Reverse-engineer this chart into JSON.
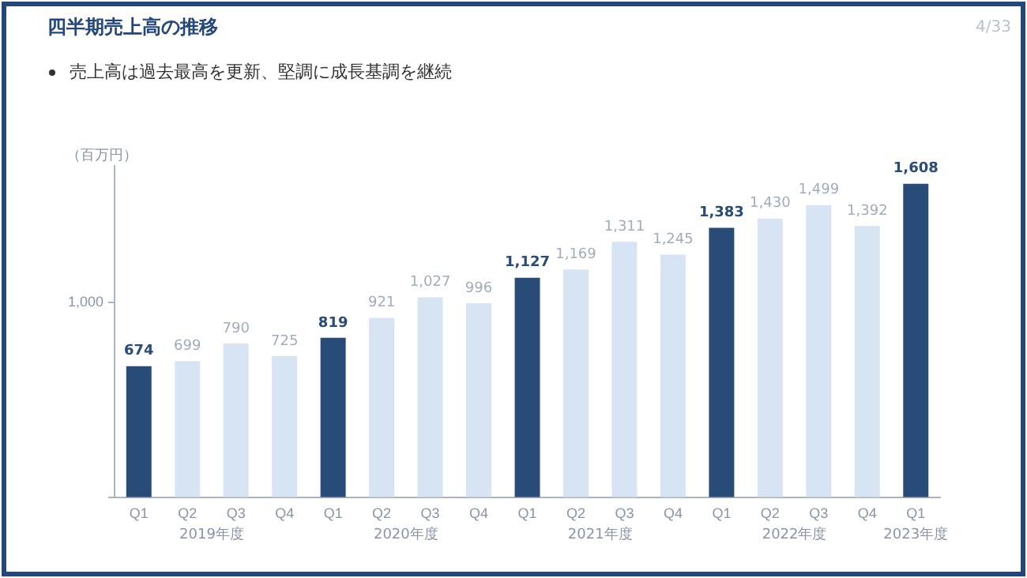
{
  "chart_data": {
    "type": "bar",
    "title": "四半期売上高の推移",
    "subtitle": "売上高は過去最高を更新、堅調に成長基調を継続",
    "ylabel": "（百万円）",
    "categories": [
      "Q1",
      "Q2",
      "Q3",
      "Q4",
      "Q1",
      "Q2",
      "Q3",
      "Q4",
      "Q1",
      "Q2",
      "Q3",
      "Q4",
      "Q1",
      "Q2",
      "Q3",
      "Q4",
      "Q1"
    ],
    "values": [
      674,
      699,
      790,
      725,
      819,
      921,
      1027,
      996,
      1127,
      1169,
      1311,
      1245,
      1383,
      1430,
      1499,
      1392,
      1608
    ],
    "value_labels": [
      "674",
      "699",
      "790",
      "725",
      "819",
      "921",
      "1,027",
      "996",
      "1,127",
      "1,169",
      "1,311",
      "1,245",
      "1,383",
      "1,430",
      "1,499",
      "1,392",
      "1,608"
    ],
    "colors": [
      "#284b78",
      "#d6e4f3",
      "#d6e4f3",
      "#d6e4f3",
      "#284b78",
      "#d6e4f3",
      "#d6e4f3",
      "#d6e4f3",
      "#284b78",
      "#d6e4f3",
      "#d6e4f3",
      "#d6e4f3",
      "#284b78",
      "#d6e4f3",
      "#d6e4f3",
      "#d6e4f3",
      "#284b78"
    ],
    "ylim": [
      0,
      1700
    ],
    "yticks": [
      0,
      {
        "value": 1000,
        "label": "1,000"
      }
    ],
    "grid": false,
    "legend": false,
    "annotations": [
      "2019年度",
      "2020年度",
      "2021年度",
      "2022年度",
      "2023年度",
      "4/33"
    ]
  }
}
